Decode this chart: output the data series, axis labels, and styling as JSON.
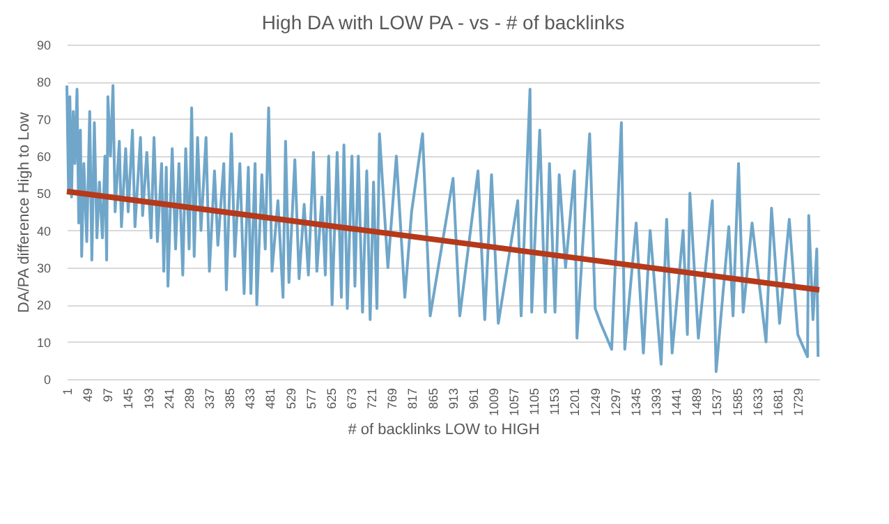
{
  "chart_data": {
    "type": "line",
    "title": "High DA with LOW PA - vs - # of backlinks",
    "xlabel": "# of backlinks LOW to HIGH",
    "ylabel": "DA/PA difference  High to Low",
    "xlim": [
      1,
      1780
    ],
    "xticks": [
      1,
      49,
      97,
      145,
      193,
      241,
      289,
      337,
      385,
      433,
      481,
      529,
      577,
      625,
      673,
      721,
      769,
      817,
      865,
      913,
      961,
      1009,
      1057,
      1105,
      1153,
      1201,
      1249,
      1297,
      1345,
      1393,
      1441,
      1489,
      1537,
      1585,
      1633,
      1681,
      1729
    ],
    "ylim": [
      0,
      90
    ],
    "yticks": [
      0,
      10,
      20,
      30,
      40,
      50,
      60,
      70,
      80,
      90
    ],
    "grid": "y",
    "line_style": "solid",
    "series": [
      {
        "color": "#6fa6c9",
        "x": [
          1,
          5,
          8,
          12,
          16,
          20,
          25,
          29,
          33,
          36,
          41,
          48,
          55,
          60,
          66,
          72,
          78,
          85,
          91,
          95,
          98,
          104,
          110,
          115,
          125,
          130,
          140,
          146,
          156,
          162,
          175,
          180,
          190,
          200,
          207,
          215,
          225,
          230,
          236,
          240,
          250,
          258,
          266,
          275,
          282,
          290,
          296,
          302,
          310,
          318,
          330,
          338,
          350,
          358,
          372,
          378,
          390,
          398,
          410,
          420,
          430,
          436,
          446,
          450,
          462,
          470,
          478,
          486,
          500,
          512,
          518,
          526,
          540,
          550,
          562,
          572,
          584,
          592,
          604,
          612,
          620,
          628,
          640,
          650,
          656,
          664,
          675,
          682,
          690,
          700,
          710,
          718,
          726,
          734,
          740,
          760,
          780,
          800,
          816,
          842,
          860,
          914,
          930,
          973,
          989,
          1005,
          1021,
          1067,
          1075,
          1096,
          1100,
          1119,
          1132,
          1142,
          1155,
          1165,
          1180,
          1201,
          1207,
          1237,
          1250,
          1263,
          1289,
          1312,
          1320,
          1347,
          1364,
          1380,
          1406,
          1419,
          1432,
          1458,
          1468,
          1474,
          1494,
          1527,
          1536,
          1566,
          1576,
          1589,
          1600,
          1621,
          1654,
          1667,
          1686,
          1709,
          1729,
          1752,
          1755,
          1765,
          1774,
          1777
        ],
        "values": [
          79,
          50,
          76,
          49,
          72,
          58,
          78,
          42,
          67,
          33,
          58,
          37,
          72,
          32,
          69,
          38,
          53,
          38,
          60,
          32,
          76,
          60,
          79,
          45,
          64,
          41,
          62,
          45,
          67,
          41,
          65,
          44,
          61,
          38,
          65,
          37,
          58,
          29,
          57,
          25,
          62,
          35,
          58,
          28,
          62,
          35,
          73,
          33,
          65,
          40,
          65,
          29,
          56,
          36,
          58,
          24,
          66,
          33,
          58,
          23,
          57,
          23,
          58,
          20,
          55,
          35,
          73,
          29,
          48,
          22,
          64,
          26,
          59,
          27,
          47,
          28,
          61,
          29,
          49,
          28,
          60,
          20,
          61,
          22,
          63,
          19,
          60,
          25,
          60,
          18,
          56,
          16,
          53,
          19,
          66,
          30,
          60,
          22,
          45,
          66,
          17,
          54,
          17,
          56,
          16,
          55,
          15,
          48,
          17,
          78,
          18,
          67,
          18,
          58,
          18,
          55,
          30,
          56,
          11,
          66,
          19,
          15,
          8,
          69,
          8,
          42,
          7,
          40,
          4,
          43,
          7,
          40,
          12,
          50,
          11,
          48,
          2,
          41,
          17,
          58,
          18,
          42,
          10,
          46,
          15,
          43,
          12,
          6,
          44,
          16,
          35,
          6
        ]
      },
      {
        "color": "#b5391a",
        "x": [
          1,
          1780
        ],
        "values": [
          50.5,
          24
        ]
      }
    ]
  }
}
